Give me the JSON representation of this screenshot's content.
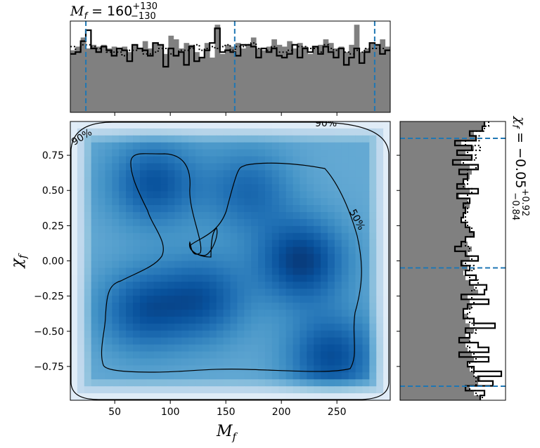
{
  "chart_data": [
    {
      "id": "joint",
      "type": "heatmap",
      "xlabel": "M_f",
      "ylabel": "χ_f",
      "xlim": [
        10,
        298
      ],
      "ylim": [
        -0.99,
        0.99
      ],
      "x_ticks": [
        50,
        100,
        150,
        200,
        250
      ],
      "y_ticks": [
        -0.75,
        -0.5,
        -0.25,
        0.0,
        0.25,
        0.5,
        0.75
      ],
      "x_tick_labels": [
        "50",
        "100",
        "150",
        "200",
        "250"
      ],
      "y_tick_labels": [
        "−0.75",
        "−0.50",
        "−0.25",
        "0.00",
        "0.25",
        "0.50",
        "0.75"
      ],
      "colormap": "Blues",
      "density_peaks": [
        {
          "x": 218,
          "y": 0.0,
          "weight": 1.0
        },
        {
          "x": 85,
          "y": 0.55,
          "weight": 0.8
        },
        {
          "x": 245,
          "y": -0.68,
          "weight": 0.85
        },
        {
          "x": 130,
          "y": -0.27,
          "weight": 0.75
        },
        {
          "x": 75,
          "y": -0.35,
          "weight": 0.75
        },
        {
          "x": 170,
          "y": 0.5,
          "weight": 0.6
        }
      ],
      "contours": [
        {
          "label": "50%"
        },
        {
          "label": "90%"
        }
      ]
    },
    {
      "id": "marginal_x",
      "type": "bar",
      "title_main": "M",
      "title_sub": "f",
      "title_rest": " = 160",
      "title_plus": "+130",
      "title_minus": "−130",
      "fill_color": "#808080",
      "quantile_lines": [
        24,
        158,
        284
      ],
      "quantile_color": "#1f77b4"
    },
    {
      "id": "marginal_y",
      "type": "bar",
      "orientation": "horizontal",
      "title_main": "χ",
      "title_sub": "f",
      "title_rest": " = −0.05",
      "title_plus": "+0.92",
      "title_minus": "−0.84",
      "fill_color": "#808080",
      "quantile_lines": [
        0.87,
        -0.05,
        -0.89
      ],
      "quantile_color": "#1f77b4"
    }
  ]
}
